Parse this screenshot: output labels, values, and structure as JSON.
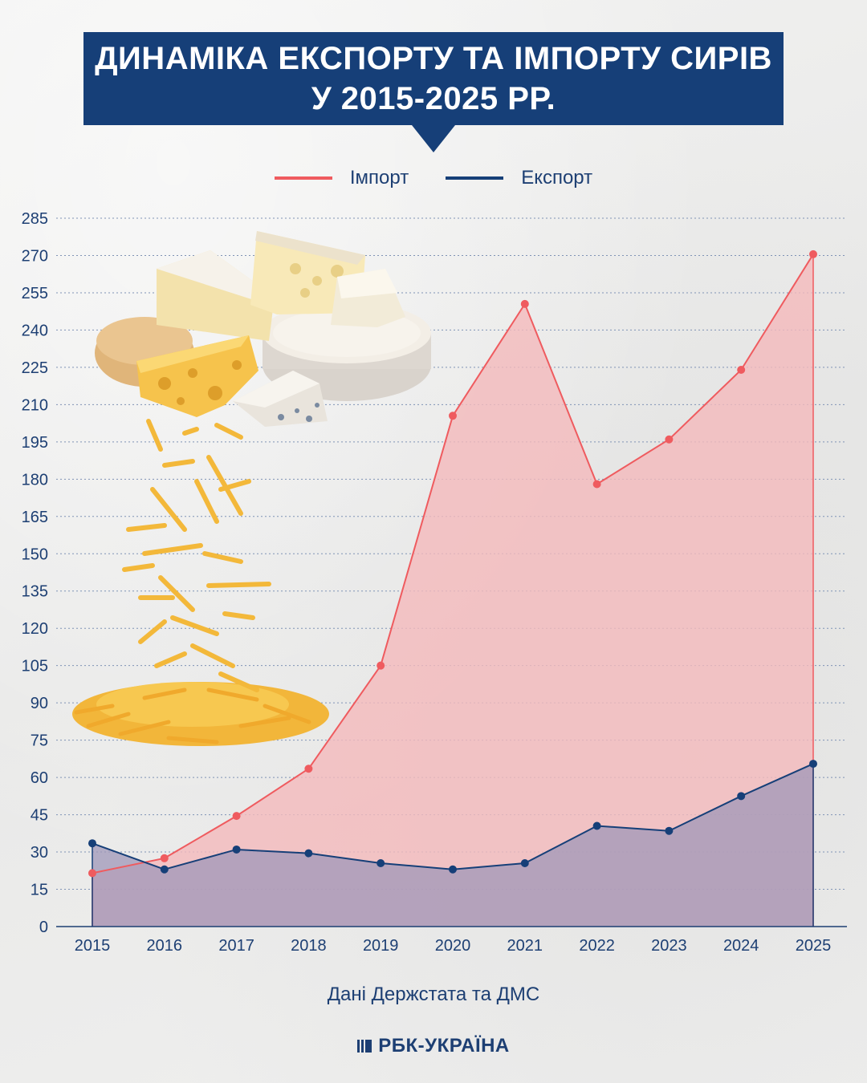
{
  "title": {
    "line1": "ДИНАМІКА ЕКСПОРТУ ТА ІМПОРТУ СИРІВ",
    "line2": "У 2015-2025 РР."
  },
  "legend": {
    "import_label": "Імпорт",
    "export_label": "Експорт"
  },
  "source": "Дані Держстата та ДМС",
  "logo": {
    "text": "РБК-УКРАЇНА",
    "icon": "rbc-logo-icon"
  },
  "illustration": {
    "icon": "cheese-pile-icon"
  },
  "colors": {
    "import": "#ef5b5f",
    "import_fill": "#f4b9bb",
    "export": "#163f78",
    "export_fill": "#9f97b8",
    "title_bg": "#163f78"
  },
  "chart_data": {
    "type": "area",
    "title": "ДИНАМІКА ЕКСПОРТУ ТА ІМПОРТУ СИРІВ У 2015-2025 РР.",
    "xlabel": "",
    "ylabel": "",
    "categories": [
      "2015",
      "2016",
      "2017",
      "2018",
      "2019",
      "2020",
      "2021",
      "2022",
      "2023",
      "2024",
      "2025"
    ],
    "yticks": [
      0,
      15,
      30,
      45,
      60,
      75,
      90,
      105,
      120,
      135,
      150,
      165,
      180,
      195,
      210,
      225,
      240,
      255,
      270,
      285
    ],
    "ylim": [
      0,
      285
    ],
    "grid": true,
    "legend_position": "top-center",
    "series": [
      {
        "name": "Імпорт",
        "values": [
          21.5,
          27.5,
          44.5,
          63.5,
          105,
          205.5,
          250.5,
          178,
          196,
          224,
          270.5
        ]
      },
      {
        "name": "Експорт",
        "values": [
          33.5,
          23,
          31,
          29.5,
          25.5,
          23,
          25.5,
          40.5,
          38.5,
          52.5,
          65.5
        ]
      }
    ]
  }
}
